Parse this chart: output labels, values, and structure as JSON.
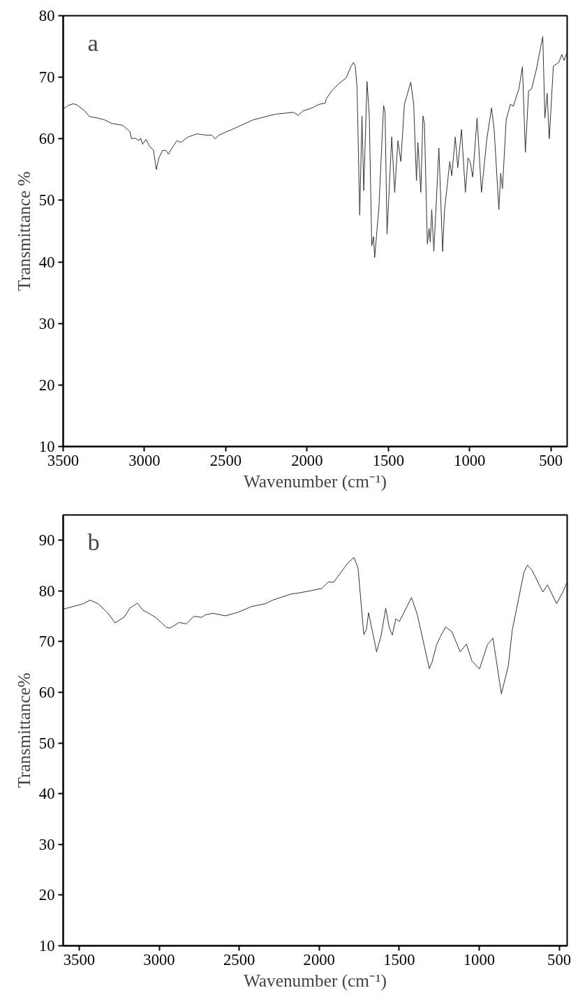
{
  "chart_data": [
    {
      "type": "line",
      "xlabel": "Wavenumber (cm⁻¹)",
      "ylabel": "Transmittance %",
      "annotations": [
        "a"
      ],
      "xlim": [
        3500,
        400
      ],
      "ylim": [
        10,
        80
      ],
      "xticks": [
        3500,
        3000,
        2500,
        2000,
        1500,
        1000,
        500
      ],
      "yticks": [
        10,
        20,
        30,
        40,
        50,
        60,
        70,
        80
      ],
      "grid": false,
      "marker": "none",
      "line_style": "solid",
      "x": [
        3500,
        3471,
        3437,
        3415,
        3370,
        3337,
        3292,
        3247,
        3202,
        3135,
        3090,
        3079,
        3057,
        3034,
        3023,
        3012,
        2990,
        2967,
        2945,
        2927,
        2911,
        2889,
        2867,
        2853,
        2833,
        2800,
        2777,
        2732,
        2676,
        2620,
        2587,
        2565,
        2542,
        2464,
        2329,
        2195,
        2083,
        2054,
        2027,
        1971,
        1926,
        1888,
        1882,
        1848,
        1803,
        1759,
        1729,
        1714,
        1703,
        1692,
        1676,
        1662,
        1651,
        1631,
        1617,
        1602,
        1591,
        1584,
        1558,
        1529,
        1520,
        1508,
        1479,
        1461,
        1441,
        1423,
        1401,
        1389,
        1362,
        1344,
        1327,
        1318,
        1300,
        1287,
        1278,
        1260,
        1249,
        1242,
        1233,
        1220,
        1189,
        1166,
        1155,
        1122,
        1110,
        1088,
        1073,
        1050,
        1026,
        1010,
        997,
        981,
        954,
        927,
        894,
        865,
        849,
        820,
        809,
        798,
        775,
        749,
        731,
        697,
        675,
        657,
        637,
        619,
        590,
        563,
        550,
        537,
        523,
        510,
        485,
        451,
        433,
        418,
        400
      ],
      "series": [
        {
          "color": "#333333",
          "values": [
            64.8,
            65.4,
            65.7,
            65.5,
            64.6,
            63.6,
            63.4,
            63.1,
            62.5,
            62.2,
            61.2,
            60.0,
            60.1,
            59.7,
            60.1,
            59.1,
            59.9,
            58.7,
            58.2,
            55.0,
            56.9,
            58.1,
            58.1,
            57.5,
            58.4,
            59.7,
            59.4,
            60.3,
            60.8,
            60.6,
            60.6,
            60.0,
            60.6,
            61.5,
            63.1,
            64.0,
            64.3,
            63.8,
            64.5,
            65.0,
            65.6,
            65.8,
            66.5,
            67.8,
            69.0,
            69.9,
            71.8,
            72.4,
            71.8,
            68.1,
            47.6,
            63.7,
            51.6,
            69.3,
            63.7,
            42.6,
            44.1,
            40.7,
            48.8,
            65.4,
            64.3,
            44.5,
            60.3,
            51.3,
            59.7,
            56.3,
            65.6,
            66.7,
            69.2,
            65.6,
            53.2,
            59.4,
            51.3,
            63.7,
            62.5,
            42.9,
            45.4,
            43.2,
            48.5,
            41.7,
            58.5,
            41.7,
            48.2,
            56.3,
            54.0,
            60.3,
            55.3,
            61.5,
            51.3,
            56.9,
            56.3,
            53.8,
            63.4,
            51.3,
            60.0,
            65.0,
            61.5,
            48.5,
            54.4,
            51.9,
            63.1,
            65.6,
            65.3,
            68.1,
            71.7,
            57.8,
            67.8,
            68.1,
            71.2,
            74.9,
            76.6,
            63.4,
            67.4,
            60.0,
            71.8,
            72.4,
            73.7,
            72.7,
            74.2
          ]
        }
      ]
    },
    {
      "type": "line",
      "xlabel": "Wavenumber (cm⁻¹)",
      "ylabel": "Transmittance%",
      "annotations": [
        "b"
      ],
      "xlim": [
        3600,
        450
      ],
      "ylim": [
        10,
        95
      ],
      "xticks": [
        3500,
        3000,
        2500,
        2000,
        1500,
        1000,
        500
      ],
      "yticks": [
        10,
        20,
        30,
        40,
        50,
        60,
        70,
        80,
        90
      ],
      "grid": false,
      "marker": "none",
      "line_style": "solid",
      "x": [
        3600,
        3507,
        3473,
        3432,
        3382,
        3325,
        3275,
        3216,
        3184,
        3136,
        3102,
        3075,
        3018,
        2954,
        2931,
        2874,
        2831,
        2783,
        2734,
        2711,
        2665,
        2586,
        2506,
        2426,
        2381,
        2336,
        2290,
        2233,
        2176,
        2130,
        2062,
        1983,
        1942,
        1910,
        1819,
        1782,
        1757,
        1721,
        1705,
        1691,
        1641,
        1612,
        1584,
        1562,
        1543,
        1521,
        1498,
        1423,
        1387,
        1350,
        1312,
        1294,
        1266,
        1244,
        1210,
        1171,
        1119,
        1080,
        1045,
        998,
        948,
        914,
        861,
        818,
        793,
        720,
        698,
        670,
        602,
        573,
        516,
        475,
        450
      ],
      "series": [
        {
          "color": "#333333",
          "values": [
            76.4,
            77.2,
            77.5,
            78.2,
            77.5,
            75.8,
            73.7,
            74.9,
            76.6,
            77.6,
            76.2,
            75.8,
            74.7,
            72.8,
            72.7,
            73.8,
            73.5,
            75.0,
            74.8,
            75.3,
            75.6,
            75.1,
            75.8,
            76.9,
            77.2,
            77.5,
            78.2,
            78.8,
            79.4,
            79.6,
            80.0,
            80.5,
            81.8,
            81.7,
            85.6,
            86.6,
            84.5,
            71.4,
            72.4,
            75.7,
            68.0,
            71.3,
            76.6,
            72.8,
            71.3,
            74.5,
            74.0,
            78.7,
            75.4,
            70.2,
            64.7,
            66.0,
            69.4,
            70.9,
            72.9,
            72.0,
            68.0,
            69.5,
            66.2,
            64.6,
            69.4,
            70.7,
            59.7,
            65.2,
            72.3,
            83.7,
            85.1,
            84.1,
            79.8,
            81.2,
            77.5,
            79.9,
            81.8
          ]
        }
      ]
    }
  ]
}
